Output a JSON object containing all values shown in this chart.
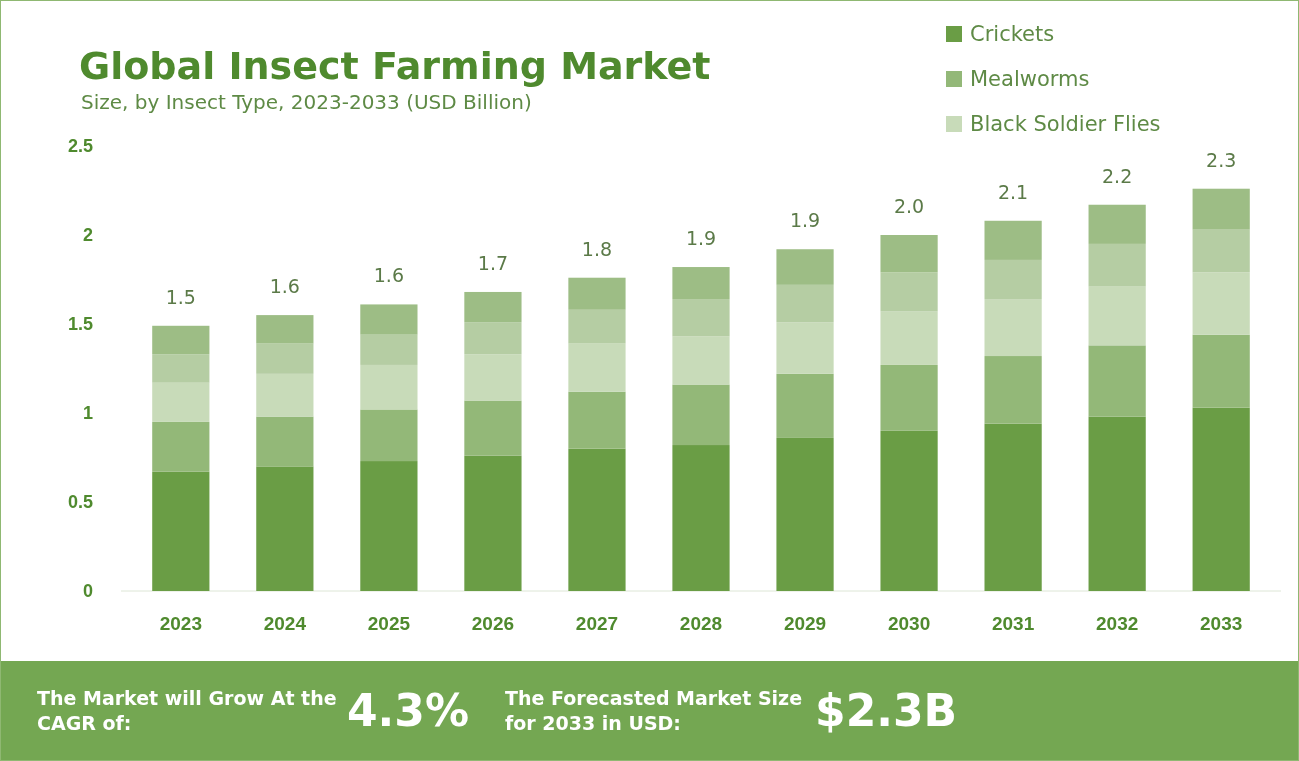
{
  "chart_data": {
    "type": "bar",
    "title": "Global Insect Farming Market",
    "subtitle": "Size, by Insect Type, 2023-2033 (USD Billion)",
    "categories": [
      "2023",
      "2024",
      "2025",
      "2026",
      "2027",
      "2028",
      "2029",
      "2030",
      "2031",
      "2032",
      "2033"
    ],
    "stacked": true,
    "series": [
      {
        "name": "Crickets",
        "color": "#6a9d45",
        "values": [
          0.67,
          0.7,
          0.73,
          0.76,
          0.8,
          0.82,
          0.86,
          0.9,
          0.94,
          0.98,
          1.03
        ]
      },
      {
        "name": "Mealworms",
        "color": "#93b878",
        "values": [
          0.28,
          0.28,
          0.29,
          0.31,
          0.32,
          0.34,
          0.36,
          0.37,
          0.38,
          0.4,
          0.41
        ]
      },
      {
        "name": "Black Soldier Flies",
        "color": "#c8dbb9",
        "values": [
          0.22,
          0.24,
          0.25,
          0.26,
          0.27,
          0.27,
          0.29,
          0.3,
          0.32,
          0.33,
          0.35
        ]
      },
      {
        "color": "#b5cda3",
        "values": [
          0.16,
          0.17,
          0.17,
          0.18,
          0.19,
          0.21,
          0.21,
          0.22,
          0.22,
          0.24,
          0.24
        ]
      },
      {
        "color": "#9dbd85",
        "values": [
          0.16,
          0.16,
          0.17,
          0.17,
          0.18,
          0.18,
          0.2,
          0.21,
          0.22,
          0.22,
          0.23
        ]
      }
    ],
    "totals": [
      "1.5",
      "1.6",
      "1.6",
      "1.7",
      "1.8",
      "1.9",
      "1.9",
      "2.0",
      "2.1",
      "2.2",
      "2.3"
    ],
    "ylim": [
      0,
      2.5
    ],
    "yticks": [
      0,
      0.5,
      1,
      1.5,
      2,
      2.5
    ],
    "legend": "top right",
    "annotations": [
      "The Market will Grow At the CAGR of:",
      "4.3%",
      "The Forecasted Market Size for 2033 in USD:",
      "$2.3B"
    ]
  }
}
